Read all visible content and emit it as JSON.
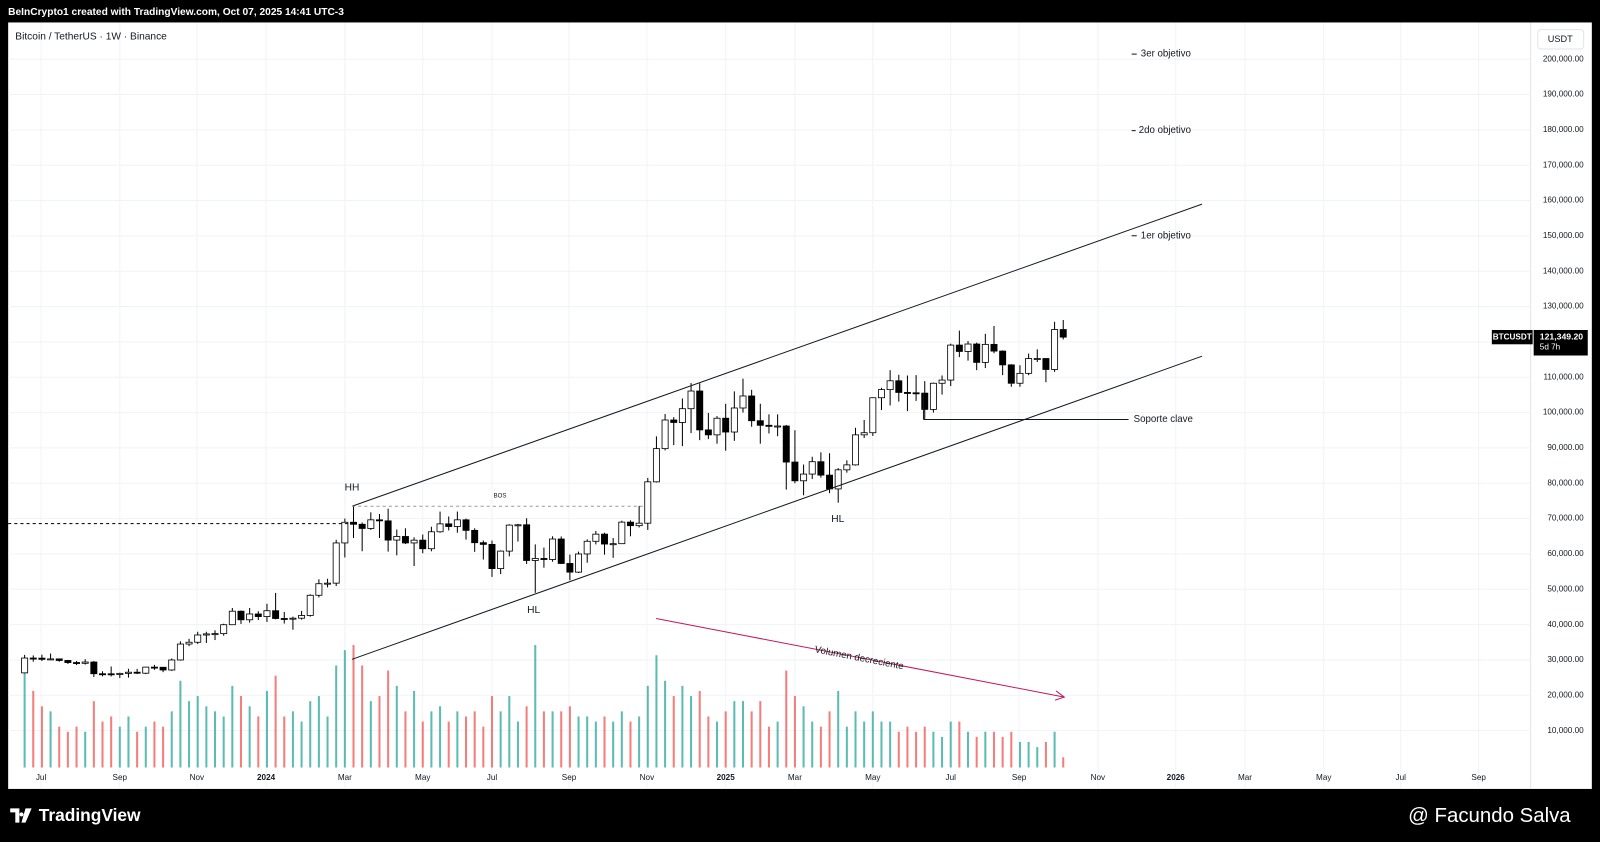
{
  "header": {
    "credit": "BeInCrypto1 created with TradingView.com, Oct 07, 2025 14:41 UTC-3"
  },
  "footer": {
    "logo": "TradingView",
    "watermark": "@ Facundo Salva"
  },
  "chart_data": {
    "type": "candlestick",
    "title": "Bitcoin / TetherUS · 1W · Binance",
    "currency": "USDT",
    "open": [
      26340,
      30540,
      30510,
      30170,
      30300,
      29850,
      29270,
      29050,
      29410,
      26100,
      26080,
      25870,
      26200,
      26530,
      26250,
      27970,
      27930,
      27160,
      29990,
      34500,
      35010,
      37060,
      37370,
      37450,
      39970,
      43790,
      41370,
      43010,
      42280,
      43930,
      41730,
      41580,
      41820,
      42580,
      48300,
      51570,
      51730,
      63110,
      68960,
      68390,
      67210,
      69650,
      69360,
      63920,
      64940,
      63110,
      63900,
      61480,
      66270,
      68510,
      67760,
      69650,
      66670,
      63180,
      62700,
      55850,
      60800,
      68160,
      68250,
      58150,
      58710,
      58420,
      64220,
      57300,
      54850,
      59990,
      63580,
      65600,
      62800,
      62900,
      69000,
      68000,
      68700,
      80400,
      89800,
      97900,
      97200,
      101100,
      106100,
      95100,
      93700,
      98400,
      94500,
      101300,
      104700,
      97700,
      96400,
      96100,
      96200,
      86000,
      80700,
      82600,
      86100,
      82300,
      78400,
      83800,
      85200,
      93700,
      94300,
      104200,
      106500,
      109000,
      105700,
      105600,
      105500,
      100900,
      108300,
      109200,
      119100,
      117300,
      119400,
      114200,
      119300,
      117400,
      113500,
      108300,
      111100,
      115300,
      115300,
      112200,
      123500
    ],
    "high": [
      31430,
      31280,
      31500,
      31800,
      30400,
      29990,
      29700,
      30200,
      29690,
      26800,
      28150,
      26400,
      27500,
      27480,
      28050,
      28600,
      28000,
      30400,
      35280,
      35980,
      37980,
      37980,
      38400,
      40250,
      44700,
      44000,
      44700,
      43800,
      45900,
      48970,
      43600,
      42250,
      43880,
      48600,
      52820,
      52980,
      64000,
      70000,
      73780,
      68900,
      71770,
      71300,
      72800,
      66900,
      67250,
      64700,
      65500,
      67700,
      71980,
      70600,
      71990,
      70000,
      67250,
      63800,
      63800,
      61000,
      68400,
      68500,
      70100,
      62700,
      61800,
      65000,
      64950,
      59800,
      60650,
      64130,
      66500,
      66000,
      64500,
      69400,
      69500,
      73600,
      81500,
      93270,
      99590,
      98700,
      104000,
      108350,
      108300,
      99900,
      99000,
      102500,
      106000,
      109600,
      106450,
      102500,
      99500,
      99500,
      96500,
      95000,
      85300,
      87500,
      88750,
      88500,
      84300,
      86500,
      95700,
      97900,
      104300,
      107000,
      112000,
      110700,
      110500,
      110600,
      108900,
      108500,
      110500,
      119500,
      123200,
      120250,
      119800,
      122300,
      124500,
      117600,
      113700,
      113400,
      116700,
      117900,
      115400,
      125700,
      126200
    ],
    "low": [
      26260,
      29500,
      29700,
      29950,
      29500,
      28860,
      28580,
      28700,
      25170,
      25350,
      25330,
      24900,
      25000,
      26000,
      26000,
      27200,
      26540,
      26900,
      29800,
      33900,
      34530,
      34800,
      35630,
      36850,
      39950,
      40200,
      40550,
      41300,
      40750,
      41500,
      40300,
      38550,
      41400,
      42250,
      47700,
      50530,
      50900,
      59000,
      64500,
      60760,
      66800,
      64500,
      60660,
      59600,
      62800,
      56550,
      60200,
      60750,
      66000,
      66650,
      66000,
      64060,
      60600,
      58400,
      53500,
      54300,
      59300,
      63500,
      57150,
      49000,
      56100,
      57800,
      57200,
      52550,
      54600,
      57500,
      62700,
      59800,
      58900,
      62800,
      65000,
      67500,
      66800,
      80200,
      89300,
      90800,
      90500,
      94200,
      92200,
      92500,
      91200,
      89200,
      92000,
      100000,
      96000,
      91200,
      94100,
      93300,
      78200,
      80000,
      76600,
      81200,
      81600,
      77200,
      74500,
      83000,
      85000,
      92800,
      93400,
      100700,
      102000,
      103100,
      100400,
      103300,
      98200,
      100000,
      105100,
      107500,
      115700,
      114700,
      112000,
      112600,
      116800,
      110600,
      107300,
      107300,
      110600,
      114300,
      108600,
      111500,
      120700
    ],
    "close": [
      30540,
      30510,
      30170,
      30300,
      29850,
      29270,
      29050,
      29410,
      26100,
      26080,
      25870,
      26200,
      26530,
      26250,
      27970,
      27930,
      27160,
      29990,
      34500,
      35010,
      37060,
      37370,
      37450,
      39970,
      43790,
      41370,
      43010,
      42280,
      43930,
      41730,
      41580,
      41820,
      42580,
      48300,
      51570,
      51730,
      63110,
      68960,
      68390,
      67210,
      69650,
      69360,
      63920,
      64940,
      63110,
      63900,
      61480,
      66270,
      68510,
      67760,
      69650,
      66670,
      63180,
      62700,
      55850,
      60800,
      68160,
      68250,
      58150,
      58710,
      58420,
      64220,
      57300,
      54850,
      59990,
      63580,
      65600,
      62800,
      62900,
      69000,
      68000,
      68700,
      80400,
      89800,
      97900,
      97200,
      101100,
      106100,
      95100,
      93700,
      98400,
      94500,
      101300,
      104700,
      97700,
      96400,
      96100,
      96200,
      86000,
      80700,
      82600,
      86100,
      82300,
      78400,
      83800,
      85200,
      93700,
      94300,
      104200,
      106500,
      109000,
      105700,
      105600,
      105500,
      100900,
      108300,
      109200,
      119100,
      117300,
      119400,
      114200,
      119300,
      117400,
      113500,
      108300,
      111100,
      115300,
      115300,
      112200,
      123500,
      121349.2
    ],
    "volume": [
      190000,
      150000,
      120000,
      110000,
      80000,
      70000,
      80000,
      70000,
      130000,
      90000,
      100000,
      80000,
      100000,
      70000,
      80000,
      90000,
      80000,
      110000,
      170000,
      130000,
      140000,
      120000,
      110000,
      100000,
      160000,
      140000,
      120000,
      100000,
      150000,
      180000,
      100000,
      110000,
      90000,
      130000,
      140000,
      100000,
      200000,
      230000,
      240000,
      200000,
      130000,
      140000,
      190000,
      160000,
      110000,
      150000,
      90000,
      110000,
      120000,
      90000,
      110000,
      100000,
      110000,
      80000,
      140000,
      110000,
      140000,
      90000,
      120000,
      240000,
      110000,
      110000,
      110000,
      120000,
      100000,
      100000,
      90000,
      100000,
      90000,
      110000,
      90000,
      100000,
      160000,
      220000,
      170000,
      140000,
      160000,
      140000,
      150000,
      100000,
      90000,
      110000,
      130000,
      130000,
      110000,
      130000,
      80000,
      90000,
      190000,
      140000,
      120000,
      90000,
      80000,
      110000,
      150000,
      80000,
      110000,
      90000,
      110000,
      90000,
      90000,
      70000,
      80000,
      70000,
      80000,
      70000,
      60000,
      90000,
      90000,
      70000,
      60000,
      70000,
      70000,
      60000,
      70000,
      50000,
      50000,
      40000,
      50000,
      70000,
      20000
    ],
    "volume_ylim": [
      0,
      400000
    ],
    "up_color": "#ffffff",
    "down_color": "#000000",
    "volume_up_color": "#26a69a",
    "volume_down_color": "#ef5350",
    "xlim": [
      -1.9,
      174
    ],
    "xticks": [
      {
        "value": 1.9,
        "label": "Jul"
      },
      {
        "value": 11.0,
        "label": "Sep"
      },
      {
        "value": 19.9,
        "label": "Nov"
      },
      {
        "value": 27.9,
        "label": "2024"
      },
      {
        "value": 37.0,
        "label": "Mar"
      },
      {
        "value": 46.0,
        "label": "May"
      },
      {
        "value": 54.0,
        "label": "Jul"
      },
      {
        "value": 62.9,
        "label": "Sep"
      },
      {
        "value": 71.9,
        "label": "Nov"
      },
      {
        "value": 81.0,
        "label": "2025"
      },
      {
        "value": 89.0,
        "label": "Mar"
      },
      {
        "value": 98.0,
        "label": "May"
      },
      {
        "value": 107.0,
        "label": "Jul"
      },
      {
        "value": 114.9,
        "label": "Sep"
      },
      {
        "value": 124.0,
        "label": "Nov"
      },
      {
        "value": 133.0,
        "label": "2026"
      },
      {
        "value": 141.0,
        "label": "Mar"
      },
      {
        "value": 150.1,
        "label": "May"
      },
      {
        "value": 159.0,
        "label": "Jul"
      },
      {
        "value": 168.0,
        "label": "Sep"
      }
    ],
    "ylim": [
      -6500,
      210400
    ],
    "yticks": [
      {
        "value": 10000,
        "label": "10,000.00"
      },
      {
        "value": 20000,
        "label": "20,000.00"
      },
      {
        "value": 30000,
        "label": "30,000.00"
      },
      {
        "value": 40000,
        "label": "40,000.00"
      },
      {
        "value": 50000,
        "label": "50,000.00"
      },
      {
        "value": 60000,
        "label": "60,000.00"
      },
      {
        "value": 70000,
        "label": "70,000.00"
      },
      {
        "value": 80000,
        "label": "80,000.00"
      },
      {
        "value": 90000,
        "label": "90,000.00"
      },
      {
        "value": 100000,
        "label": "100,000.00"
      },
      {
        "value": 110000,
        "label": "110,000.00"
      },
      {
        "value": 120000,
        "label": "120,000.00"
      },
      {
        "value": 130000,
        "label": "130,000.00"
      },
      {
        "value": 140000,
        "label": "140,000.00"
      },
      {
        "value": 150000,
        "label": "150,000.00"
      },
      {
        "value": 160000,
        "label": "160,000.00"
      },
      {
        "value": 170000,
        "label": "170,000.00"
      },
      {
        "value": 180000,
        "label": "180,000.00"
      },
      {
        "value": 190000,
        "label": "190,000.00"
      },
      {
        "value": 200000,
        "label": "200,000.00"
      }
    ],
    "grid": true,
    "last_price": {
      "symbol": "BTCUSDT",
      "label": "121,349.20",
      "countdown": "5d 7h"
    },
    "annotations": [
      "HH",
      "BOS",
      "HL",
      "HL",
      "Soporte clave",
      "1er objetivo",
      "2do objetivo",
      "3er objetivo",
      "Volumen decreciente"
    ]
  }
}
